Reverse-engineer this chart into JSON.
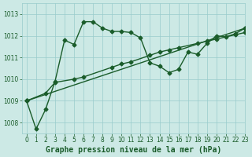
{
  "title": "",
  "xlabel": "Graphe pression niveau de la mer (hPa)",
  "ylabel": "",
  "bg_color": "#cce9e5",
  "grid_color": "#99cccc",
  "line_color": "#1a5c2a",
  "xlim": [
    -0.5,
    23
  ],
  "ylim": [
    1007.5,
    1013.5
  ],
  "yticks": [
    1008,
    1009,
    1010,
    1011,
    1012,
    1013
  ],
  "xticks": [
    0,
    1,
    2,
    3,
    4,
    5,
    6,
    7,
    8,
    9,
    10,
    11,
    12,
    13,
    14,
    15,
    16,
    17,
    18,
    19,
    20,
    21,
    22,
    23
  ],
  "series1_x": [
    0,
    1,
    2,
    3,
    4,
    5,
    6,
    7,
    8,
    9,
    10,
    11,
    12,
    13,
    14,
    15,
    16,
    17,
    18,
    19,
    20,
    21,
    22,
    23
  ],
  "series1_y": [
    1009.0,
    1007.7,
    1008.6,
    1009.9,
    1011.8,
    1011.6,
    1012.65,
    1012.65,
    1012.35,
    1012.2,
    1012.2,
    1012.15,
    1011.9,
    1010.75,
    1010.6,
    1010.3,
    1010.45,
    1011.25,
    1011.15,
    1011.65,
    1012.0,
    1011.95,
    1012.1,
    1012.35
  ],
  "series2_x": [
    0,
    2,
    3,
    5,
    6,
    9,
    10,
    11,
    13,
    14,
    15,
    16,
    18,
    19,
    20,
    22,
    23
  ],
  "series2_y": [
    1009.0,
    1009.35,
    1009.85,
    1010.0,
    1010.1,
    1010.55,
    1010.7,
    1010.8,
    1011.1,
    1011.25,
    1011.35,
    1011.45,
    1011.65,
    1011.75,
    1011.85,
    1012.05,
    1012.15
  ],
  "series3_x": [
    0,
    23
  ],
  "series3_y": [
    1009.0,
    1012.35
  ],
  "marker": "D",
  "marker_size": 2.5,
  "linewidth": 1.0,
  "xlabel_fontsize": 7,
  "tick_fontsize": 5.5,
  "tick_color": "#1a5c2a",
  "label_color": "#1a5c2a"
}
